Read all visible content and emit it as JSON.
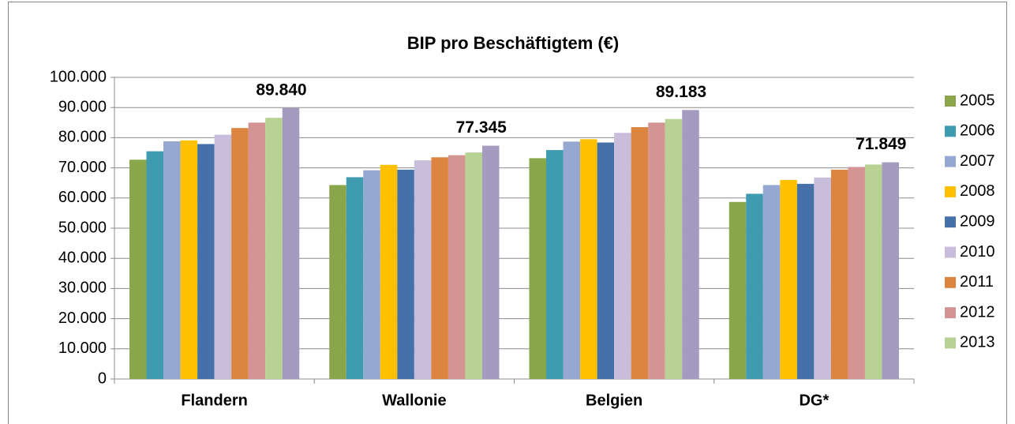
{
  "chart_data": {
    "type": "bar",
    "title": "BIP pro Beschäftigtem (€)",
    "categories": [
      "Flandern",
      "Wallonie",
      "Belgien",
      "DG*"
    ],
    "series": [
      {
        "name": "2005",
        "color": "#8aa64b",
        "values": [
          72700,
          64300,
          73200,
          58700
        ]
      },
      {
        "name": "2006",
        "color": "#3e9bb0",
        "values": [
          75500,
          66900,
          75900,
          61400
        ]
      },
      {
        "name": "2007",
        "color": "#94a8d1",
        "values": [
          78800,
          69200,
          78700,
          64300
        ]
      },
      {
        "name": "2008",
        "color": "#ffc000",
        "values": [
          79100,
          71000,
          79500,
          66000
        ]
      },
      {
        "name": "2009",
        "color": "#4571a8",
        "values": [
          77900,
          69400,
          78400,
          64700
        ]
      },
      {
        "name": "2010",
        "color": "#c8bedc",
        "values": [
          81000,
          72500,
          81600,
          66800
        ]
      },
      {
        "name": "2011",
        "color": "#dc8540",
        "values": [
          83200,
          73500,
          83500,
          69400
        ]
      },
      {
        "name": "2012",
        "color": "#d49494",
        "values": [
          85000,
          74200,
          85000,
          70300
        ]
      },
      {
        "name": "2013",
        "color": "#b8d293",
        "values": [
          86600,
          75100,
          86200,
          71100
        ]
      },
      {
        "name": null,
        "color": "#a59bc1",
        "values": [
          89840,
          77345,
          89183,
          71849
        ],
        "value_labels": [
          "89.840",
          "77.345",
          "89.183",
          "71.849"
        ]
      }
    ],
    "ylim": [
      0,
      100000
    ],
    "yticks": [
      0,
      {
        "value": 10000,
        "label": "10.000"
      },
      {
        "value": 20000,
        "label": "20.000"
      },
      {
        "value": 30000,
        "label": "30.000"
      },
      {
        "value": 40000,
        "label": "40.000"
      },
      {
        "value": 50000,
        "label": "50.000"
      },
      {
        "value": 60000,
        "label": "60.000"
      },
      {
        "value": 70000,
        "label": "70.000"
      },
      {
        "value": 80000,
        "label": "80.000"
      },
      {
        "value": 90000,
        "label": "90.000"
      },
      {
        "value": 100000,
        "label": "100.000"
      }
    ],
    "grid": true,
    "legend": "right"
  }
}
